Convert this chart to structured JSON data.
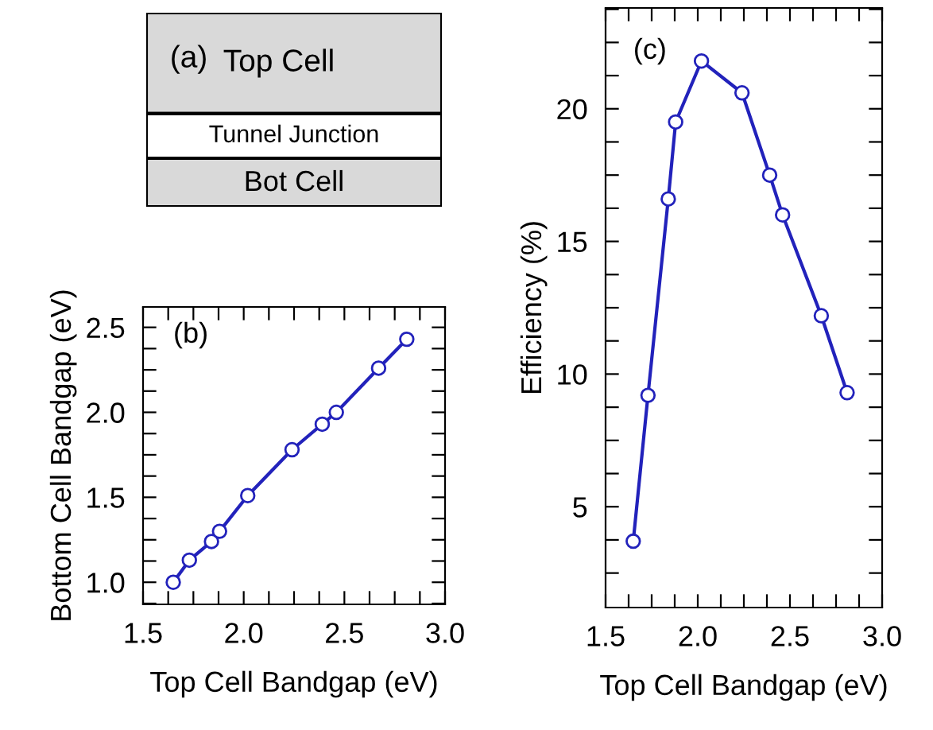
{
  "chart_data": [
    {
      "type": "other",
      "annotations": [
        "(a)",
        "Top Cell",
        "Tunnel Junction",
        "Bot Cell"
      ]
    },
    {
      "type": "line",
      "annotations": [
        "(b)"
      ],
      "xlabel": "Top Cell Bandgap (eV)",
      "ylabel": "Bottom Cell Bandgap (eV)",
      "marker": "circle",
      "grid": false,
      "x": [
        1.65,
        1.73,
        1.84,
        1.88,
        2.02,
        2.24,
        2.39,
        2.46,
        2.67,
        2.81
      ],
      "series": [
        {
          "color": "#2222bb",
          "values": [
            1.0,
            1.13,
            1.24,
            1.3,
            1.51,
            1.78,
            1.93,
            2.0,
            2.26,
            2.43
          ]
        }
      ],
      "xlim": [
        1.5,
        3.0
      ],
      "ylim": [
        0.87,
        2.62
      ],
      "xticks": [
        {
          "value": 1.5,
          "label": "1.5"
        },
        {
          "value": 1.625,
          "label": null
        },
        {
          "value": 1.75,
          "label": null
        },
        {
          "value": 1.875,
          "label": null
        },
        {
          "value": 2,
          "label": "2.0"
        },
        {
          "value": 2.125,
          "label": null
        },
        {
          "value": 2.25,
          "label": null
        },
        {
          "value": 2.375,
          "label": null
        },
        {
          "value": 2.5,
          "label": "2.5"
        },
        {
          "value": 2.625,
          "label": null
        },
        {
          "value": 2.75,
          "label": null
        },
        {
          "value": 2.875,
          "label": null
        },
        {
          "value": 3,
          "label": "3.0"
        }
      ],
      "yticks": [
        {
          "value": 0.875,
          "label": null
        },
        {
          "value": 1,
          "label": "1.0"
        },
        {
          "value": 1.125,
          "label": null
        },
        {
          "value": 1.25,
          "label": null
        },
        {
          "value": 1.375,
          "label": null
        },
        {
          "value": 1.5,
          "label": "1.5"
        },
        {
          "value": 1.625,
          "label": null
        },
        {
          "value": 1.75,
          "label": null
        },
        {
          "value": 1.875,
          "label": null
        },
        {
          "value": 2,
          "label": "2.0"
        },
        {
          "value": 2.125,
          "label": null
        },
        {
          "value": 2.25,
          "label": null
        },
        {
          "value": 2.375,
          "label": null
        },
        {
          "value": 2.5,
          "label": "2.5"
        }
      ]
    },
    {
      "type": "line",
      "annotations": [
        "(c)"
      ],
      "xlabel": "Top Cell Bandgap (eV)",
      "ylabel": "Efficiency (%)",
      "marker": "circle",
      "grid": false,
      "x": [
        1.65,
        1.73,
        1.84,
        1.88,
        2.02,
        2.24,
        2.39,
        2.46,
        2.67,
        2.81
      ],
      "series": [
        {
          "color": "#2222bb",
          "values": [
            3.7,
            9.2,
            16.6,
            19.5,
            21.8,
            20.6,
            17.5,
            16.0,
            12.2,
            9.3
          ]
        }
      ],
      "xlim": [
        1.5,
        3.0
      ],
      "ylim": [
        1.2,
        23.8
      ],
      "xticks": [
        1.5,
        {
          "value": 1.625,
          "label": null
        },
        {
          "value": 1.75,
          "label": null
        },
        {
          "value": 1.875,
          "label": null
        },
        {
          "value": 2,
          "label": "2.0"
        },
        {
          "value": 2.125,
          "label": null
        },
        {
          "value": 2.25,
          "label": null
        },
        {
          "value": 2.375,
          "label": null
        },
        2.5,
        {
          "value": 2.625,
          "label": null
        },
        {
          "value": 2.75,
          "label": null
        },
        {
          "value": 2.875,
          "label": null
        },
        {
          "value": 3,
          "label": "3.0"
        }
      ],
      "yticks": [
        {
          "value": 2.5,
          "label": null
        },
        {
          "value": 3.75,
          "label": null
        },
        5,
        {
          "value": 6.25,
          "label": null
        },
        {
          "value": 7.5,
          "label": null
        },
        {
          "value": 8.75,
          "label": null
        },
        10,
        {
          "value": 11.25,
          "label": null
        },
        {
          "value": 12.5,
          "label": null
        },
        {
          "value": 13.75,
          "label": null
        },
        15,
        {
          "value": 16.25,
          "label": null
        },
        {
          "value": 17.5,
          "label": null
        },
        {
          "value": 18.75,
          "label": null
        },
        20,
        {
          "value": 21.25,
          "label": null
        },
        {
          "value": 22.5,
          "label": null
        },
        {
          "value": 23.75,
          "label": null
        }
      ]
    }
  ]
}
